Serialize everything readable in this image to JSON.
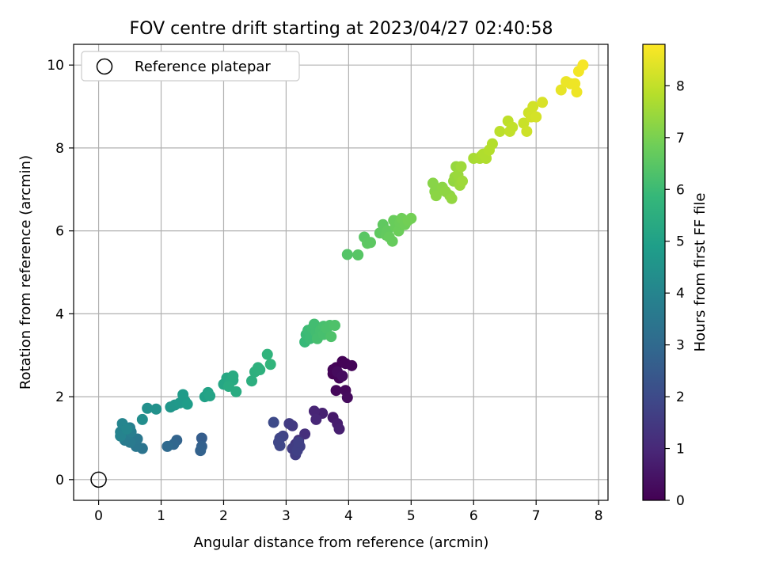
{
  "chart_data": {
    "type": "scatter",
    "title": "FOV centre drift starting at 2023/04/27 02:40:58",
    "xlabel": "Angular distance from reference (arcmin)",
    "ylabel": "Rotation from reference (arcmin)",
    "xlim": [
      -0.4,
      8.15
    ],
    "ylim": [
      -0.5,
      10.5
    ],
    "xticks": [
      "0",
      "1",
      "2",
      "3",
      "4",
      "5",
      "6",
      "7",
      "8"
    ],
    "yticks": [
      "0",
      "2",
      "4",
      "6",
      "8",
      "10"
    ],
    "grid": true,
    "legend": {
      "placement": "upper-left",
      "entries": [
        "Reference platepar"
      ]
    },
    "reference_point": {
      "x": 0,
      "y": 0
    },
    "colorbar": {
      "label": "Hours from first FF file",
      "range": [
        0,
        8.8
      ],
      "ticks": [
        "0",
        "1",
        "2",
        "3",
        "4",
        "5",
        "6",
        "7",
        "8"
      ],
      "colormap": [
        "#440154",
        "#482878",
        "#3e4989",
        "#31688e",
        "#26828e",
        "#1f9e89",
        "#35b779",
        "#6ece58",
        "#b5de2b",
        "#fde725"
      ]
    },
    "points": [
      [
        3.75,
        2.55,
        0.05
      ],
      [
        3.8,
        2.7,
        0.05
      ],
      [
        3.9,
        2.85,
        0.05
      ],
      [
        3.95,
        2.8,
        0.08
      ],
      [
        4.05,
        2.75,
        0.1
      ],
      [
        3.85,
        2.45,
        0.1
      ],
      [
        3.75,
        2.65,
        0.1
      ],
      [
        3.8,
        2.15,
        0.15
      ],
      [
        3.95,
        2.15,
        0.2
      ],
      [
        3.98,
        1.98,
        0.25
      ],
      [
        3.82,
        2.6,
        0.25
      ],
      [
        3.9,
        2.5,
        0.3
      ],
      [
        3.75,
        1.5,
        0.6
      ],
      [
        3.82,
        1.35,
        0.7
      ],
      [
        3.85,
        1.22,
        0.75
      ],
      [
        3.58,
        1.6,
        0.8
      ],
      [
        3.45,
        1.65,
        0.9
      ],
      [
        3.48,
        1.45,
        0.95
      ],
      [
        3.3,
        1.1,
        1.2
      ],
      [
        3.2,
        0.95,
        1.3
      ],
      [
        3.15,
        0.85,
        1.4
      ],
      [
        3.1,
        1.3,
        1.5
      ],
      [
        3.05,
        1.35,
        1.55
      ],
      [
        3.1,
        0.75,
        1.6
      ],
      [
        3.15,
        0.6,
        1.6
      ],
      [
        3.22,
        0.8,
        1.65
      ],
      [
        3.18,
        0.7,
        1.7
      ],
      [
        3.2,
        0.9,
        1.7
      ],
      [
        2.95,
        1.05,
        1.8
      ],
      [
        2.9,
        1.0,
        1.85
      ],
      [
        2.88,
        0.9,
        1.9
      ],
      [
        2.9,
        0.82,
        1.9
      ],
      [
        2.8,
        1.38,
        2.0
      ],
      [
        1.65,
        1.0,
        2.6
      ],
      [
        1.65,
        0.8,
        2.7
      ],
      [
        1.63,
        0.7,
        2.75
      ],
      [
        1.25,
        0.95,
        2.8
      ],
      [
        1.2,
        0.85,
        2.9
      ],
      [
        1.1,
        0.8,
        3.0
      ],
      [
        0.7,
        0.75,
        3.4
      ],
      [
        0.6,
        0.8,
        3.45
      ],
      [
        0.62,
        0.98,
        3.5
      ],
      [
        0.55,
        1.0,
        3.55
      ],
      [
        0.5,
        0.9,
        3.6
      ],
      [
        0.42,
        0.95,
        3.65
      ],
      [
        0.48,
        1.1,
        3.7
      ],
      [
        0.52,
        1.15,
        3.75
      ],
      [
        0.5,
        1.25,
        3.8
      ],
      [
        0.4,
        1.2,
        3.85
      ],
      [
        0.35,
        1.15,
        3.9
      ],
      [
        0.35,
        1.05,
        3.95
      ],
      [
        0.38,
        1.35,
        4.0
      ],
      [
        0.45,
        1.22,
        4.05
      ],
      [
        0.7,
        1.45,
        4.3
      ],
      [
        0.78,
        1.72,
        4.4
      ],
      [
        0.92,
        1.7,
        4.45
      ],
      [
        1.15,
        1.75,
        4.6
      ],
      [
        1.22,
        1.8,
        4.65
      ],
      [
        1.3,
        1.85,
        4.7
      ],
      [
        1.38,
        1.9,
        4.75
      ],
      [
        1.35,
        2.05,
        4.8
      ],
      [
        1.42,
        1.82,
        4.85
      ],
      [
        1.7,
        2.0,
        5.0
      ],
      [
        1.75,
        2.1,
        5.05
      ],
      [
        1.78,
        2.02,
        5.1
      ],
      [
        2.0,
        2.3,
        5.2
      ],
      [
        2.05,
        2.45,
        5.25
      ],
      [
        2.1,
        2.35,
        5.3
      ],
      [
        2.15,
        2.4,
        5.3
      ],
      [
        2.15,
        2.5,
        5.35
      ],
      [
        2.2,
        2.12,
        5.4
      ],
      [
        2.08,
        2.25,
        5.4
      ],
      [
        2.45,
        2.38,
        5.5
      ],
      [
        2.5,
        2.6,
        5.55
      ],
      [
        2.55,
        2.7,
        5.6
      ],
      [
        2.58,
        2.65,
        5.6
      ],
      [
        2.7,
        3.02,
        5.7
      ],
      [
        2.75,
        2.78,
        5.75
      ],
      [
        3.3,
        3.32,
        5.9
      ],
      [
        3.32,
        3.5,
        5.95
      ],
      [
        3.35,
        3.6,
        6.0
      ],
      [
        3.38,
        3.4,
        6.0
      ],
      [
        3.42,
        3.65,
        6.05
      ],
      [
        3.45,
        3.75,
        6.1
      ],
      [
        3.48,
        3.55,
        6.1
      ],
      [
        3.5,
        3.4,
        6.15
      ],
      [
        3.55,
        3.6,
        6.15
      ],
      [
        3.6,
        3.5,
        6.2
      ],
      [
        3.6,
        3.7,
        6.2
      ],
      [
        3.65,
        3.65,
        6.25
      ],
      [
        3.7,
        3.72,
        6.25
      ],
      [
        3.72,
        3.45,
        6.3
      ],
      [
        3.78,
        3.72,
        6.3
      ],
      [
        3.98,
        5.43,
        6.4
      ],
      [
        4.15,
        5.42,
        6.45
      ],
      [
        4.25,
        5.85,
        6.5
      ],
      [
        4.3,
        5.7,
        6.55
      ],
      [
        4.35,
        5.72,
        6.55
      ],
      [
        4.5,
        5.95,
        6.6
      ],
      [
        4.55,
        6.15,
        6.6
      ],
      [
        4.6,
        5.9,
        6.65
      ],
      [
        4.62,
        6.0,
        6.65
      ],
      [
        4.65,
        5.85,
        6.7
      ],
      [
        4.7,
        5.75,
        6.7
      ],
      [
        4.72,
        6.25,
        6.75
      ],
      [
        4.75,
        6.1,
        6.75
      ],
      [
        4.8,
        6.0,
        6.8
      ],
      [
        4.82,
        6.2,
        6.8
      ],
      [
        4.85,
        6.3,
        6.85
      ],
      [
        4.9,
        6.15,
        6.85
      ],
      [
        4.95,
        6.25,
        6.9
      ],
      [
        5.0,
        6.3,
        6.9
      ],
      [
        5.35,
        7.15,
        7.2
      ],
      [
        5.38,
        6.95,
        7.2
      ],
      [
        5.4,
        6.85,
        7.25
      ],
      [
        5.5,
        7.05,
        7.25
      ],
      [
        5.55,
        6.95,
        7.3
      ],
      [
        5.62,
        6.85,
        7.3
      ],
      [
        5.65,
        6.78,
        7.35
      ],
      [
        5.68,
        7.2,
        7.35
      ],
      [
        5.7,
        7.3,
        7.4
      ],
      [
        5.72,
        7.55,
        7.4
      ],
      [
        5.75,
        7.35,
        7.45
      ],
      [
        5.78,
        7.1,
        7.45
      ],
      [
        5.8,
        7.55,
        7.5
      ],
      [
        5.82,
        7.2,
        7.5
      ],
      [
        6.0,
        7.75,
        7.65
      ],
      [
        6.1,
        7.75,
        7.7
      ],
      [
        6.12,
        7.8,
        7.7
      ],
      [
        6.15,
        7.85,
        7.75
      ],
      [
        6.2,
        7.75,
        7.75
      ],
      [
        6.25,
        7.95,
        7.8
      ],
      [
        6.3,
        8.1,
        7.8
      ],
      [
        6.42,
        8.4,
        7.9
      ],
      [
        6.55,
        8.65,
        7.95
      ],
      [
        6.58,
        8.4,
        8.0
      ],
      [
        6.62,
        8.5,
        8.0
      ],
      [
        6.8,
        8.6,
        8.1
      ],
      [
        6.85,
        8.4,
        8.15
      ],
      [
        6.88,
        8.85,
        8.15
      ],
      [
        6.92,
        8.75,
        8.2
      ],
      [
        6.95,
        9.0,
        8.2
      ],
      [
        7.0,
        8.75,
        8.25
      ],
      [
        7.1,
        9.1,
        8.3
      ],
      [
        7.4,
        9.4,
        8.5
      ],
      [
        7.48,
        9.6,
        8.55
      ],
      [
        7.55,
        9.55,
        8.55
      ],
      [
        7.62,
        9.55,
        8.6
      ],
      [
        7.65,
        9.35,
        8.6
      ],
      [
        7.68,
        9.85,
        8.65
      ],
      [
        7.75,
        10.0,
        8.7
      ]
    ]
  }
}
